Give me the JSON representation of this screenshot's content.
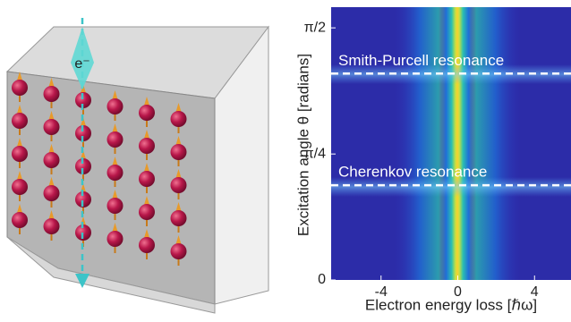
{
  "illustration": {
    "electron_label": "e⁻"
  },
  "chart_data": {
    "type": "heatmap",
    "xlabel": "Electron energy loss [ℏω]",
    "ylabel": "Excitation angle θ [radians]",
    "xlim": [
      -6.6,
      5.9
    ],
    "xticks": [
      -4,
      0,
      4
    ],
    "ylim": [
      0,
      1.7
    ],
    "yticks": [
      0,
      {
        "value": 0.785,
        "label": "π/4"
      },
      {
        "value": 1.571,
        "label": "π/2"
      }
    ],
    "annotations": [
      {
        "text": "Smith-Purcell resonance",
        "y": 1.286
      },
      {
        "text": "Cherenkov resonance",
        "y": 0.59
      }
    ]
  }
}
